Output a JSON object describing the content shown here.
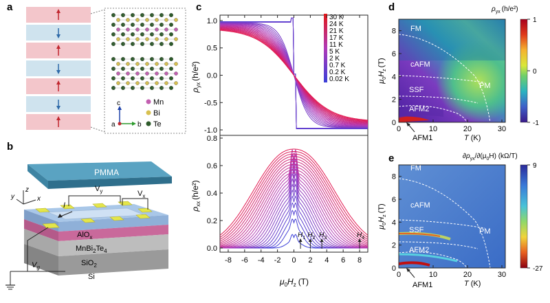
{
  "panel_a": {
    "label": "a",
    "layers": [
      {
        "moment": "up"
      },
      {
        "moment": "down"
      },
      {
        "moment": "up"
      },
      {
        "moment": "down"
      },
      {
        "moment": "up"
      },
      {
        "moment": "down"
      },
      {
        "moment": "up"
      }
    ],
    "legend": [
      {
        "name": "Mn",
        "color": "#c25fb0"
      },
      {
        "name": "Bi",
        "color": "#d8c050"
      },
      {
        "name": "Te",
        "color": "#2d5a2a"
      }
    ],
    "axes": {
      "c": "c",
      "a": "a",
      "b": "b"
    }
  },
  "panel_b": {
    "label": "b",
    "pmma": "PMMA",
    "alox": "AlO",
    "alox_sub": "x",
    "film": "MnBi",
    "film_sub1": "2",
    "film_mid": "Te",
    "film_sub2": "4",
    "sio2": "SiO",
    "sio2_sub": "2",
    "si": "Si",
    "vy": "V",
    "vy_sub": "y",
    "vx": "V",
    "vx_sub": "x",
    "current": "I",
    "vg": "V",
    "vg_sub": "g",
    "axis_x": "x",
    "axis_y": "y",
    "axis_z": "z"
  },
  "panel_c": {
    "label": "c",
    "top": {
      "ylabel": "ρ",
      "ylabel_sub": "yx",
      "ylabel_unit": "(h/e²)",
      "yticks": [
        "1.0",
        "0.5",
        "0.0",
        "-0.5",
        "-1.0"
      ],
      "ylim": [
        -1.1,
        1.1
      ]
    },
    "bottom": {
      "ylabel": "ρ",
      "ylabel_sub": "xx",
      "ylabel_unit": "(h/e²)",
      "yticks": [
        "0.8",
        "0.6",
        "0.4",
        "0.2",
        "0.0"
      ],
      "ylim": [
        -0.03,
        0.82
      ],
      "markers": [
        "H",
        "H",
        "H",
        "H"
      ],
      "marker_subs": [
        "1",
        "2",
        "3",
        "4"
      ],
      "marker_fields": [
        0.8,
        2.0,
        3.4,
        8.0
      ]
    },
    "xticks": [
      "-8",
      "-6",
      "-4",
      "-2",
      "0",
      "2",
      "4",
      "6",
      "8"
    ],
    "xlim": [
      -9,
      9
    ],
    "xlabel": "μ",
    "xlabel_sub": "0",
    "xlabel_mid": "H",
    "xlabel_sub2": "z",
    "xlabel_unit": "(T)",
    "temperatures": [
      "30 K",
      "24 K",
      "21 K",
      "17 K",
      "11 K",
      "5 K",
      "2 K",
      "0.7 K",
      "0.2 K",
      "0.02 K"
    ]
  },
  "panel_d": {
    "label": "d",
    "title_sym": "ρ",
    "title_sub": "yx",
    "title_unit": "(h/e²)",
    "cbar_ticks": [
      "1",
      "0",
      "-1"
    ],
    "phases": [
      "FM",
      "cAFM",
      "SSF",
      "AFM2",
      "PM"
    ],
    "afm1": "AFM1",
    "ylabel": "μ",
    "ylabel_sub": "0",
    "ylabel_mid": "H",
    "ylabel_sub2": "z",
    "ylabel_unit": "(T)",
    "xlabel": "T",
    "xlabel_unit": "(K)",
    "xticks": [
      "0",
      "10",
      "20",
      "30"
    ],
    "yticks": [
      "0",
      "2",
      "4",
      "6",
      "8"
    ]
  },
  "panel_e": {
    "label": "e",
    "title": "∂ρ",
    "title_sub": "yx",
    "title_mid": "/∂(μ",
    "title_sub2": "0",
    "title_end": "H) (kΩ/T)",
    "cbar_ticks": [
      "9",
      "-27"
    ],
    "phases": [
      "FM",
      "cAFM",
      "SSF",
      "AFM2",
      "PM"
    ],
    "afm1": "AFM1",
    "ylabel": "μ",
    "ylabel_sub": "0",
    "ylabel_mid": "H",
    "ylabel_sub2": "z",
    "ylabel_unit": "(T)",
    "xlabel": "T",
    "xlabel_unit": "(K)",
    "xticks": [
      "0",
      "10",
      "20",
      "30"
    ],
    "yticks": [
      "0",
      "2",
      "4",
      "6",
      "8"
    ]
  },
  "colors": {
    "layer_up": "#f3c6cb",
    "layer_down": "#cfe3ee",
    "arrow_up": "#c0262e",
    "arrow_down": "#2e6aa8",
    "curve_hot": "#d42050",
    "curve_cold": "#3a3fc0",
    "pmma": "#3f88a8"
  }
}
